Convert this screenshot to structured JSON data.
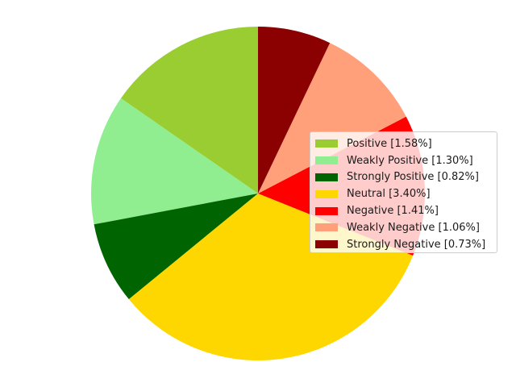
{
  "chart_data": {
    "type": "pie",
    "title": "",
    "labels": [
      "Positive",
      "Weakly Positive",
      "Strongly Positive",
      "Neutral",
      "Negative",
      "Weakly Negative",
      "Strongly Negative"
    ],
    "values": [
      1.58,
      1.3,
      0.82,
      3.4,
      1.41,
      1.06,
      0.73
    ],
    "colors": [
      "#9acd32",
      "#90ee90",
      "#006400",
      "#ffd700",
      "#ff0000",
      "#ffa07a",
      "#8b0000"
    ],
    "legend_labels": [
      "Positive [1.58%]",
      "Weakly Positive [1.30%]",
      "Strongly Positive [0.82%]",
      "Neutral [3.40%]",
      "Negative [1.41%]",
      "Weakly Negative [1.06%]",
      "Strongly Negative [0.73%]"
    ],
    "start_angle_deg": 90,
    "direction": "counterclockwise",
    "legend_position": "center-right"
  }
}
